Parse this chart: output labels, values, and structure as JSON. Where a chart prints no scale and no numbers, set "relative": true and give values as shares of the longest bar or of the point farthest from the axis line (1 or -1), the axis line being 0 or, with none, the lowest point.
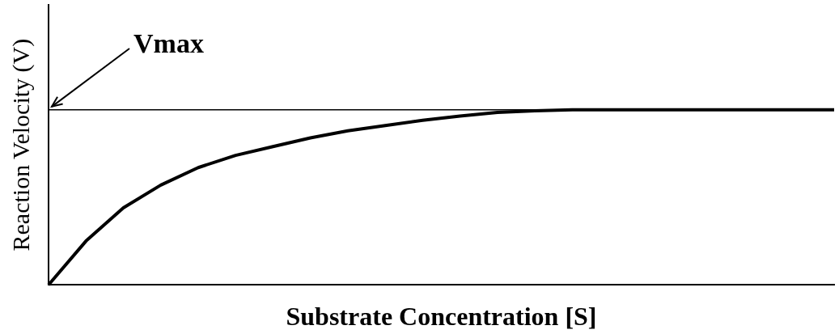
{
  "chart_data": {
    "type": "line",
    "relative": true,
    "xlabel": "Substrate Concentration [S]",
    "ylabel": "Reaction Velocity (V)",
    "categories": [
      null,
      null,
      null,
      null,
      null,
      null,
      null,
      null,
      null,
      null,
      null,
      null,
      null,
      null,
      null,
      null,
      null,
      null,
      null,
      null,
      null,
      null
    ],
    "series": [
      {
        "color": "#000000",
        "values": [
          0,
          0.25,
          0.44,
          0.57,
          0.67,
          0.74,
          0.79,
          0.84,
          0.88,
          0.91,
          0.94,
          0.965,
          0.985,
          0.995,
          1,
          1,
          1,
          1,
          1,
          1,
          1,
          1
        ]
      }
    ],
    "ref_lines": [
      {
        "axis": "y",
        "value": 1,
        "label": "Vmax",
        "color": "#000000",
        "line_style": "solid"
      }
    ],
    "marker": "none",
    "line_style": "solid",
    "grid": false,
    "legend": false
  }
}
